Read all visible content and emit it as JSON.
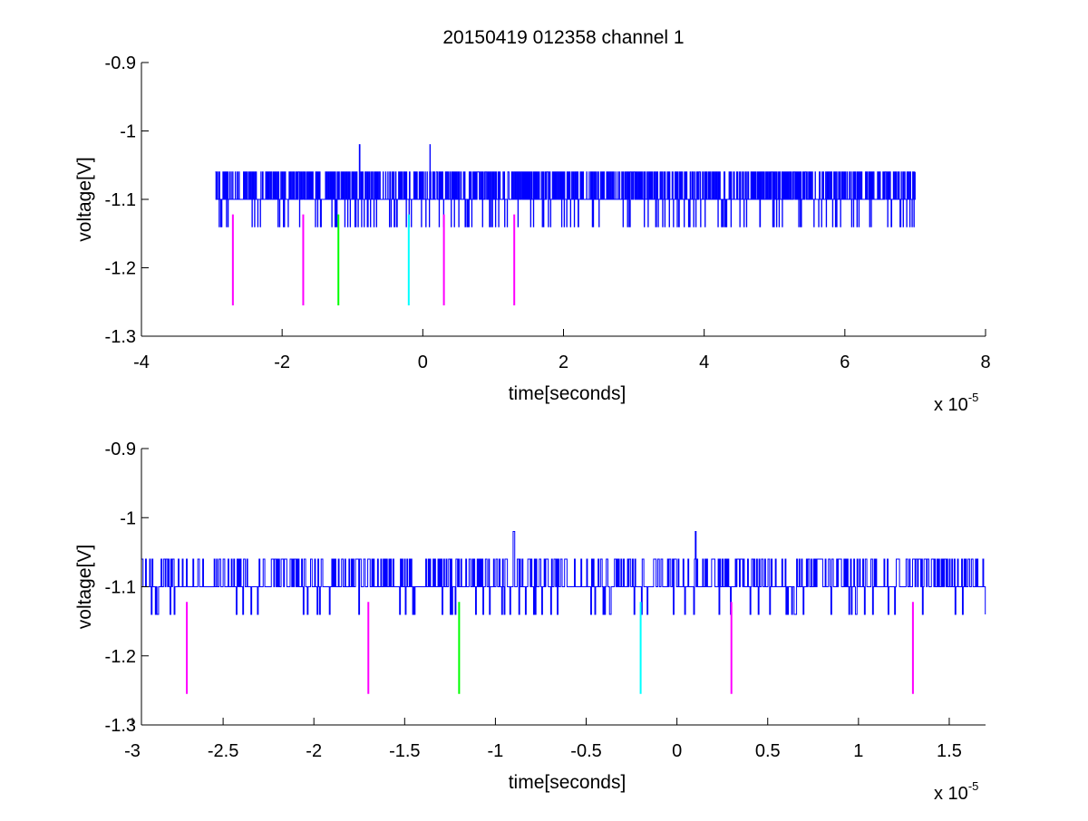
{
  "chart_data": [
    {
      "type": "line",
      "title": "20150419 012358 channel 1",
      "xlabel": "time[seconds]",
      "ylabel": "voltage[V]",
      "x_exponent_label": "x 10",
      "x_exponent": "-5",
      "xlim": [
        -4e-05,
        8e-05
      ],
      "ylim": [
        -1.3,
        -0.9
      ],
      "xticks": [
        -4e-05,
        -2e-05,
        0,
        2e-05,
        4e-05,
        6e-05,
        8e-05
      ],
      "xtick_labels": [
        "-4",
        "-2",
        "0",
        "2",
        "4",
        "6",
        "8"
      ],
      "yticks": [
        -0.9,
        -1.0,
        -1.1,
        -1.2,
        -1.3
      ],
      "ytick_labels": [
        "-0.9",
        "-1",
        "-1.1",
        "-1.2",
        "-1.3"
      ],
      "grid": false,
      "series": [
        {
          "color": "#0000ff",
          "x_range": [
            -2.95e-05,
            7e-05
          ],
          "baseline": -1.1,
          "levels": [
            -1.06,
            -1.1,
            -1.14
          ],
          "spikes": [
            {
              "x": -9e-06,
              "y": -1.02
            },
            {
              "x": 1e-06,
              "y": -1.02
            }
          ]
        }
      ],
      "markers": [
        {
          "x": -2.7e-05,
          "y_range": [
            -1.122,
            -1.255
          ],
          "color": "#ff00ff"
        },
        {
          "x": -1.7e-05,
          "y_range": [
            -1.122,
            -1.255
          ],
          "color": "#ff00ff"
        },
        {
          "x": -1.2e-05,
          "y_range": [
            -1.122,
            -1.255
          ],
          "color": "#00ff00"
        },
        {
          "x": -2e-06,
          "y_range": [
            -1.122,
            -1.255
          ],
          "color": "#00ffff"
        },
        {
          "x": 3e-06,
          "y_range": [
            -1.122,
            -1.255
          ],
          "color": "#ff00ff"
        },
        {
          "x": 1.3e-05,
          "y_range": [
            -1.122,
            -1.255
          ],
          "color": "#ff00ff"
        }
      ]
    },
    {
      "type": "line",
      "title": "",
      "xlabel": "time[seconds]",
      "ylabel": "voltage[V]",
      "x_exponent_label": "x 10",
      "x_exponent": "-5",
      "xlim": [
        -2.95e-05,
        1.7e-05
      ],
      "ylim": [
        -1.3,
        -0.9
      ],
      "xticks": [
        -3e-05,
        -2.5e-05,
        -2e-05,
        -1.5e-05,
        -1e-05,
        -5e-06,
        0,
        5e-06,
        1e-05,
        1.5e-05
      ],
      "xtick_labels": [
        "-3",
        "-2.5",
        "-2",
        "-1.5",
        "-1",
        "-0.5",
        "0",
        "0.5",
        "1",
        "1.5"
      ],
      "yticks": [
        -0.9,
        -1.0,
        -1.1,
        -1.2,
        -1.3
      ],
      "ytick_labels": [
        "-0.9",
        "-1",
        "-1.1",
        "-1.2",
        "-1.3"
      ],
      "grid": false,
      "series": [
        {
          "color": "#0000ff",
          "x_range": [
            -2.95e-05,
            1.7e-05
          ],
          "baseline": -1.1,
          "levels": [
            -1.06,
            -1.1,
            -1.14
          ],
          "spikes": [
            {
              "x": -9e-06,
              "y": -1.02
            },
            {
              "x": 1e-06,
              "y": -1.02
            }
          ]
        }
      ],
      "markers": [
        {
          "x": -2.7e-05,
          "y_range": [
            -1.122,
            -1.255
          ],
          "color": "#ff00ff"
        },
        {
          "x": -1.7e-05,
          "y_range": [
            -1.122,
            -1.255
          ],
          "color": "#ff00ff"
        },
        {
          "x": -1.2e-05,
          "y_range": [
            -1.122,
            -1.255
          ],
          "color": "#00ff00"
        },
        {
          "x": -2e-06,
          "y_range": [
            -1.122,
            -1.255
          ],
          "color": "#00ffff"
        },
        {
          "x": 3e-06,
          "y_range": [
            -1.122,
            -1.255
          ],
          "color": "#ff00ff"
        },
        {
          "x": 1.3e-05,
          "y_range": [
            -1.122,
            -1.255
          ],
          "color": "#ff00ff"
        }
      ]
    }
  ]
}
